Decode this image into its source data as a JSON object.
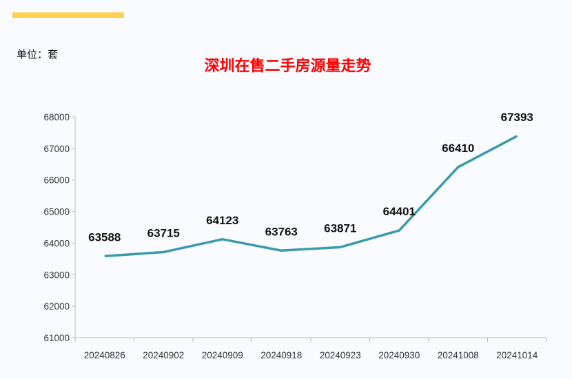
{
  "unit_label": "单位：套",
  "chart_data": {
    "type": "line",
    "title": "深圳在售二手房源量走势",
    "xlabel": "",
    "ylabel": "",
    "categories": [
      "20240826",
      "20240902",
      "20240909",
      "20240918",
      "20240923",
      "20240930",
      "20241008",
      "20241014"
    ],
    "values": [
      63588,
      63715,
      64123,
      63763,
      63871,
      64401,
      66410,
      67393
    ],
    "ylim": [
      61000,
      68000
    ],
    "yticks": [
      61000,
      62000,
      63000,
      64000,
      65000,
      66000,
      67000,
      68000
    ],
    "grid": false,
    "data_labels": true,
    "line_color": "#3a9aab",
    "title_color": "#ff0000",
    "accent_bar_color": "#ffd152"
  }
}
